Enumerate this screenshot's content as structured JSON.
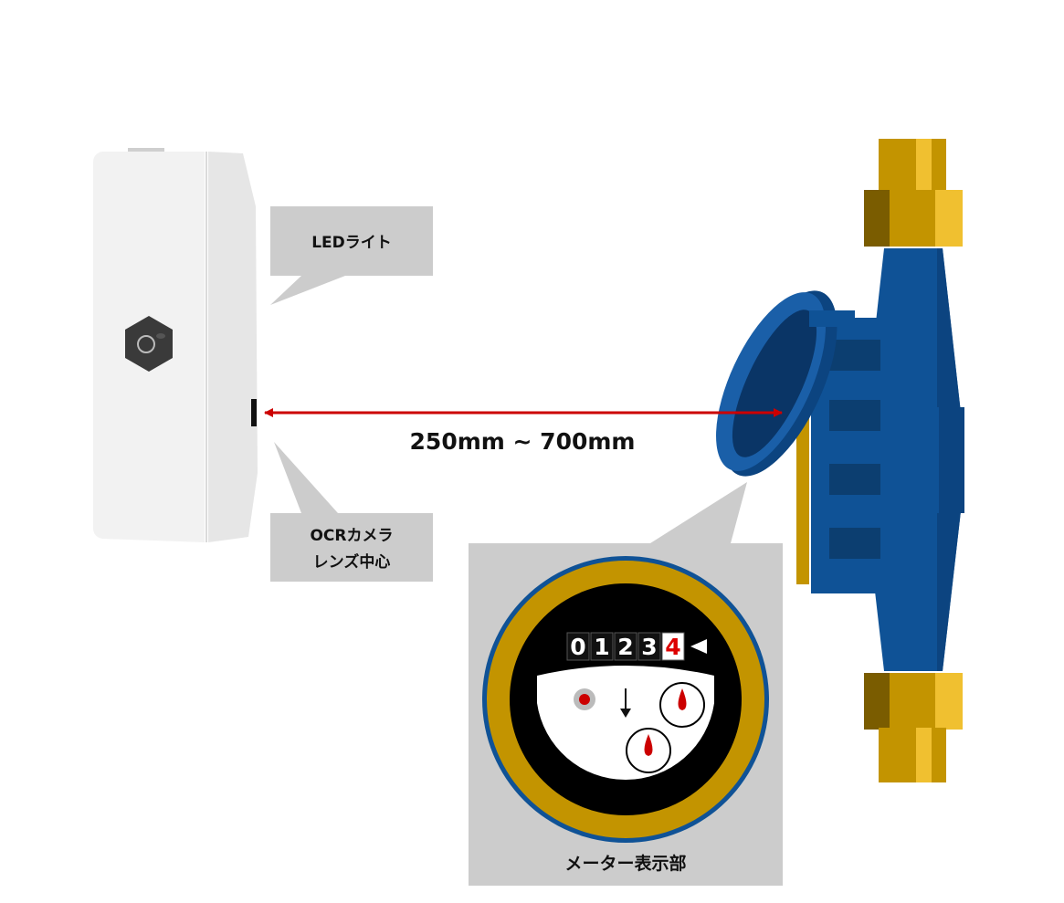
{
  "labels": {
    "led": "LEDライト",
    "camera_line1": "OCRカメラ",
    "camera_line2": "レンズ中心",
    "meter_display": "メーター表示部"
  },
  "distance": "250mm ~ 700mm",
  "counter": {
    "digits": [
      "0",
      "1",
      "2",
      "3",
      "4"
    ],
    "highlight_index": 4
  },
  "colors": {
    "arrow": "#cc0000",
    "meter_body": "#0f5296",
    "brass": "#c39400",
    "callout": "#cccccc",
    "device": "#f2f2f2"
  },
  "icons": {
    "camera_lens": "hex-lens-icon",
    "counter_pointer": "triangle-pointer-icon",
    "flow_arrow": "down-arrow-icon"
  }
}
